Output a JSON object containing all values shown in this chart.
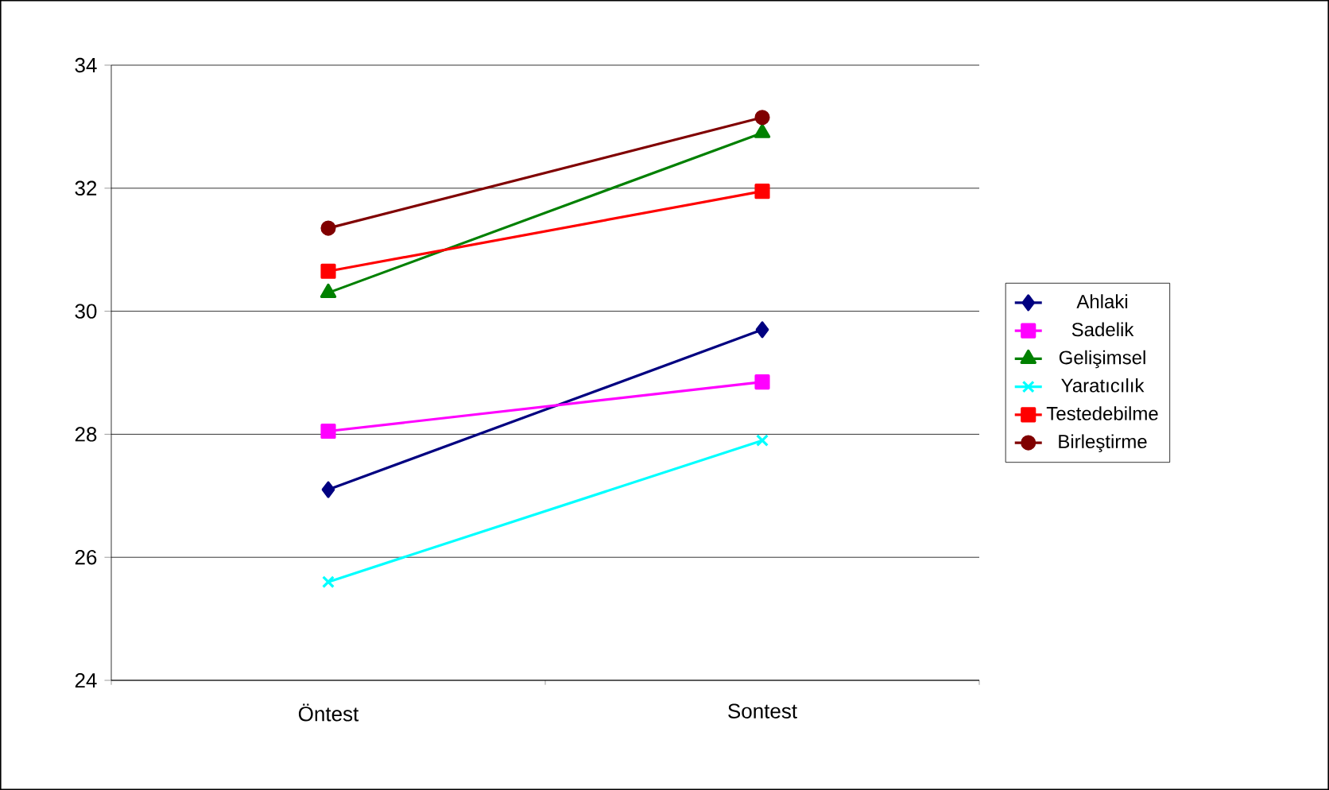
{
  "chart_data": {
    "type": "line",
    "categories": [
      "Öntest",
      "Sontest"
    ],
    "series": [
      {
        "name": "Ahlaki",
        "color": "#000080",
        "marker": "diamond",
        "values": [
          27.1,
          29.7
        ]
      },
      {
        "name": "Sadelik",
        "color": "#ff00ff",
        "marker": "square",
        "values": [
          28.05,
          28.85
        ]
      },
      {
        "name": "Gelişimsel",
        "color": "#008000",
        "marker": "triangle",
        "values": [
          30.3,
          32.9
        ]
      },
      {
        "name": "Yaratıcılık",
        "color": "#00ffff",
        "marker": "cross",
        "values": [
          25.6,
          27.9
        ]
      },
      {
        "name": "Testedebilme",
        "color": "#ff0000",
        "marker": "square",
        "values": [
          30.65,
          31.95
        ]
      },
      {
        "name": "Birleştirme",
        "color": "#800000",
        "marker": "circle",
        "values": [
          31.35,
          33.15
        ]
      }
    ],
    "ylim": [
      24,
      34
    ],
    "yticks": [
      24,
      26,
      28,
      30,
      32,
      34
    ],
    "grid": "y",
    "legend": "right"
  }
}
